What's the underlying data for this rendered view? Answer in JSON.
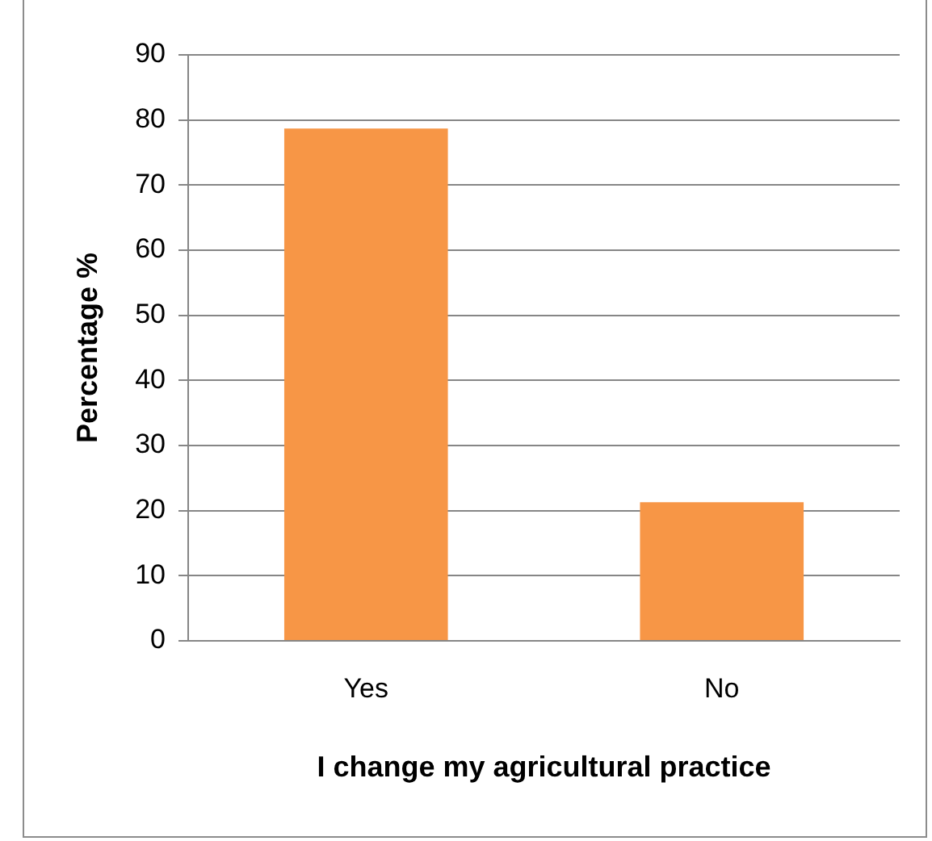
{
  "chart_data": {
    "type": "bar",
    "xlabel": "I change my agricultural practice",
    "ylabel": "Percentage %",
    "categories": [
      "Yes",
      "No"
    ],
    "values": [
      78.7,
      21.3
    ],
    "color": "#f79646",
    "ylim": [
      0,
      90
    ],
    "yticks": [
      0,
      10,
      20,
      30,
      40,
      50,
      60,
      70,
      80,
      90
    ],
    "grid": "y"
  }
}
